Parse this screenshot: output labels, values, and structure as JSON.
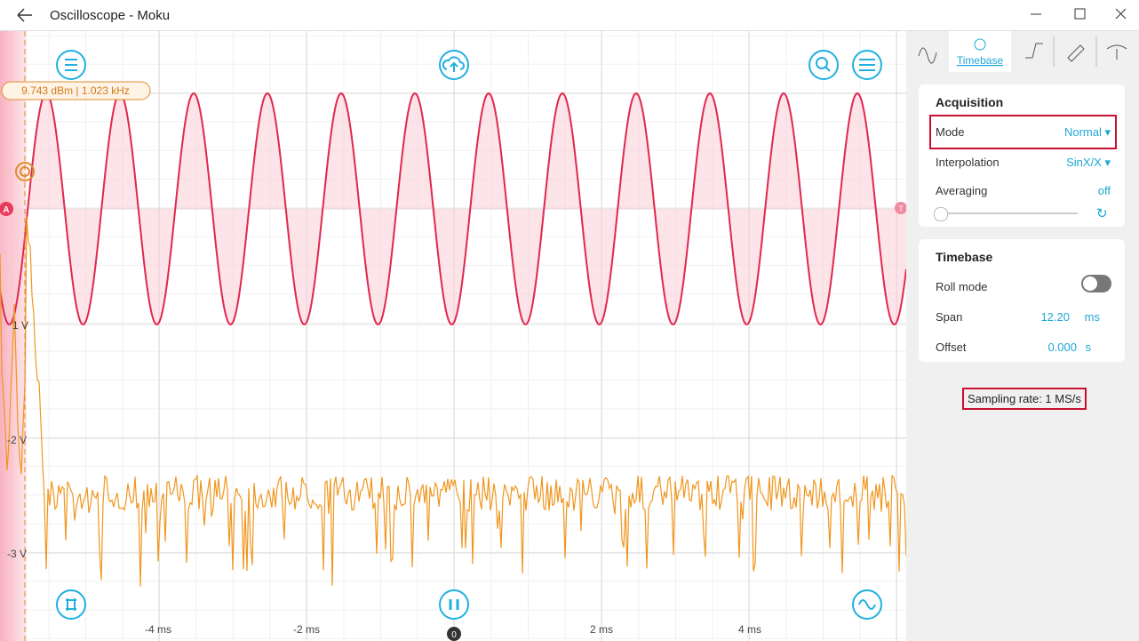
{
  "window": {
    "title": "Oscilloscope - Moku"
  },
  "plot": {
    "cursor_readout": "9.743 dBm | 1.023 kHz",
    "y_labels": [
      "1 V",
      "-2 V",
      "-3 V"
    ],
    "x_labels": [
      "-4 ms",
      "-2 ms",
      "2 ms",
      "4 ms"
    ],
    "trigger_position": "0",
    "channel_marker": "A",
    "trigger_marker": "T"
  },
  "panel": {
    "active_tab": "Timebase",
    "acquisition": {
      "title": "Acquisition",
      "mode_label": "Mode",
      "mode_value": "Normal",
      "interpolation_label": "Interpolation",
      "interpolation_value": "SinX/X",
      "averaging_label": "Averaging",
      "averaging_value": "off"
    },
    "timebase": {
      "title": "Timebase",
      "roll_mode_label": "Roll mode",
      "span_label": "Span",
      "span_value": "12.20",
      "span_unit": "ms",
      "offset_label": "Offset",
      "offset_value": "0.000",
      "offset_unit": "s"
    },
    "sampling_rate": "Sampling rate: 1 MS/s"
  }
}
